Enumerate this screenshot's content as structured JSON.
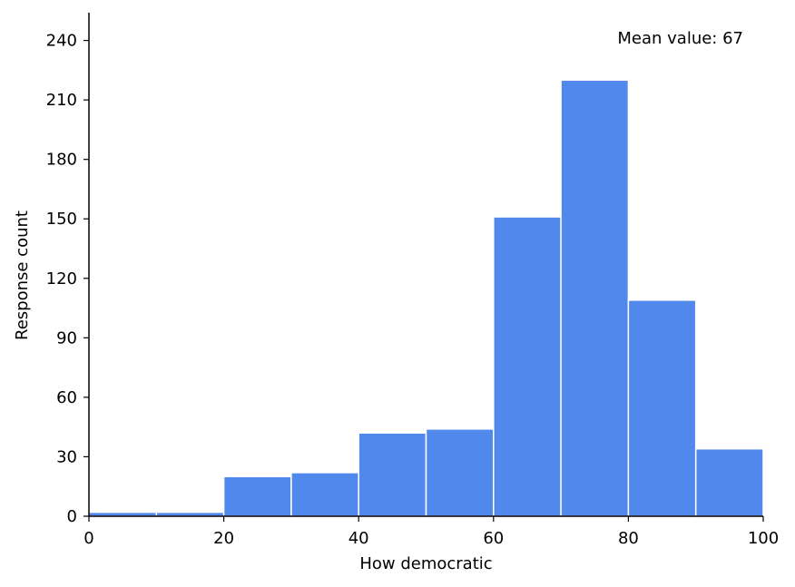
{
  "chart_data": {
    "type": "bar",
    "title": "",
    "xlabel": "How democratic",
    "ylabel": "Response count",
    "annotation": "Mean value: 67",
    "bins": [
      {
        "start": 0,
        "end": 10,
        "count": 2
      },
      {
        "start": 10,
        "end": 20,
        "count": 2
      },
      {
        "start": 20,
        "end": 30,
        "count": 20
      },
      {
        "start": 30,
        "end": 40,
        "count": 22
      },
      {
        "start": 40,
        "end": 50,
        "count": 42
      },
      {
        "start": 50,
        "end": 60,
        "count": 44
      },
      {
        "start": 60,
        "end": 70,
        "count": 151
      },
      {
        "start": 70,
        "end": 80,
        "count": 220
      },
      {
        "start": 80,
        "end": 90,
        "count": 109
      },
      {
        "start": 90,
        "end": 100,
        "count": 34
      }
    ],
    "xlim": [
      0,
      100
    ],
    "ylim": [
      0,
      254
    ],
    "x_ticks": [
      0,
      20,
      40,
      60,
      80,
      100
    ],
    "y_ticks": [
      0,
      30,
      60,
      90,
      120,
      150,
      180,
      210,
      240
    ],
    "bar_color": "#5088ec",
    "bar_edge_color": "#ffffff",
    "grid": false,
    "legend": "none"
  }
}
